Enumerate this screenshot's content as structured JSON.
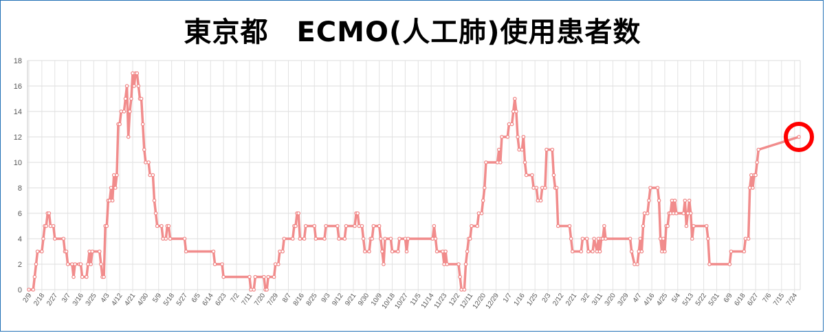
{
  "title": "東京都　ECMO(人工肺)使用患者数",
  "chart_data": {
    "type": "line",
    "title": "東京都　ECMO(人工肺)使用患者数",
    "xlabel": "",
    "ylabel": "",
    "ylim": [
      0,
      18
    ],
    "yticks": [
      "0",
      "2",
      "4",
      "6",
      "8",
      "10",
      "12",
      "14",
      "16",
      "18"
    ],
    "xticks": [
      "2/9",
      "2/18",
      "2/27",
      "3/7",
      "3/16",
      "3/25",
      "4/3",
      "4/12",
      "4/21",
      "4/30",
      "5/9",
      "5/18",
      "5/27",
      "6/5",
      "6/14",
      "6/23",
      "7/2",
      "7/11",
      "7/20",
      "7/29",
      "8/7",
      "8/16",
      "8/25",
      "9/3",
      "9/12",
      "9/21",
      "9/30",
      "10/9",
      "10/18",
      "10/27",
      "11/5",
      "11/14",
      "11/23",
      "12/2",
      "12/11",
      "12/20",
      "12/29",
      "1/7",
      "1/16",
      "1/25",
      "2/3",
      "2/12",
      "2/21",
      "3/2",
      "3/11",
      "3/20",
      "3/29",
      "4/7",
      "4/16",
      "4/25",
      "5/4",
      "5/13",
      "5/22",
      "5/31",
      "6/9",
      "6/18",
      "6/27",
      "7/6",
      "7/15",
      "7/24"
    ],
    "grid": true,
    "line_color": "#f08080",
    "highlight_color": "#ff0000",
    "highlight_point": {
      "x": "7/27",
      "y": 12
    },
    "series": [
      {
        "points": [
          [
            "2/9",
            0
          ],
          [
            "2/12",
            0
          ],
          [
            "2/13",
            1
          ],
          [
            "2/14",
            2
          ],
          [
            "2/15",
            3
          ],
          [
            "2/18",
            3
          ],
          [
            "2/19",
            4
          ],
          [
            "2/20",
            5
          ],
          [
            "2/21",
            5
          ],
          [
            "2/22",
            6
          ],
          [
            "2/23",
            6
          ],
          [
            "2/24",
            5
          ],
          [
            "2/26",
            5
          ],
          [
            "2/27",
            4
          ],
          [
            "3/4",
            4
          ],
          [
            "3/5",
            3
          ],
          [
            "3/6",
            3
          ],
          [
            "3/7",
            2
          ],
          [
            "3/10",
            2
          ],
          [
            "3/11",
            1
          ],
          [
            "3/12",
            2
          ],
          [
            "3/15",
            2
          ],
          [
            "3/16",
            2
          ],
          [
            "3/17",
            1
          ],
          [
            "3/20",
            1
          ],
          [
            "3/21",
            2
          ],
          [
            "3/22",
            3
          ],
          [
            "3/23",
            2
          ],
          [
            "3/24",
            3
          ],
          [
            "3/29",
            3
          ],
          [
            "3/30",
            2
          ],
          [
            "3/31",
            1
          ],
          [
            "4/1",
            1
          ],
          [
            "4/2",
            5
          ],
          [
            "4/3",
            5
          ],
          [
            "4/4",
            7
          ],
          [
            "4/5",
            7
          ],
          [
            "4/6",
            8
          ],
          [
            "4/7",
            7
          ],
          [
            "4/8",
            9
          ],
          [
            "4/9",
            8
          ],
          [
            "4/10",
            9
          ],
          [
            "4/11",
            13
          ],
          [
            "4/12",
            13
          ],
          [
            "4/13",
            14
          ],
          [
            "4/15",
            14
          ],
          [
            "4/16",
            15
          ],
          [
            "4/17",
            16
          ],
          [
            "4/18",
            12
          ],
          [
            "4/19",
            14
          ],
          [
            "4/20",
            15
          ],
          [
            "4/21",
            17
          ],
          [
            "4/22",
            16
          ],
          [
            "4/23",
            17
          ],
          [
            "4/24",
            17
          ],
          [
            "4/25",
            16
          ],
          [
            "4/26",
            15
          ],
          [
            "4/27",
            15
          ],
          [
            "4/28",
            13
          ],
          [
            "4/29",
            11
          ],
          [
            "4/30",
            10
          ],
          [
            "5/2",
            10
          ],
          [
            "5/3",
            9
          ],
          [
            "5/5",
            9
          ],
          [
            "5/6",
            7
          ],
          [
            "5/7",
            6
          ],
          [
            "5/8",
            5
          ],
          [
            "5/11",
            5
          ],
          [
            "5/12",
            4
          ],
          [
            "5/14",
            4
          ],
          [
            "5/15",
            5
          ],
          [
            "5/16",
            5
          ],
          [
            "5/17",
            4
          ],
          [
            "5/27",
            4
          ],
          [
            "5/28",
            3
          ],
          [
            "6/16",
            3
          ],
          [
            "6/17",
            2
          ],
          [
            "6/22",
            2
          ],
          [
            "6/23",
            1
          ],
          [
            "7/11",
            1
          ],
          [
            "7/12",
            0
          ],
          [
            "7/14",
            0
          ],
          [
            "7/15",
            1
          ],
          [
            "7/21",
            1
          ],
          [
            "7/22",
            0
          ],
          [
            "7/23",
            0
          ],
          [
            "7/24",
            1
          ],
          [
            "7/28",
            1
          ],
          [
            "7/29",
            2
          ],
          [
            "7/31",
            2
          ],
          [
            "8/1",
            3
          ],
          [
            "8/3",
            3
          ],
          [
            "8/4",
            4
          ],
          [
            "8/10",
            4
          ],
          [
            "8/11",
            5
          ],
          [
            "8/12",
            5
          ],
          [
            "8/13",
            6
          ],
          [
            "8/14",
            6
          ],
          [
            "8/15",
            4
          ],
          [
            "8/18",
            4
          ],
          [
            "8/19",
            5
          ],
          [
            "8/25",
            5
          ],
          [
            "8/26",
            4
          ],
          [
            "9/1",
            4
          ],
          [
            "9/2",
            5
          ],
          [
            "9/10",
            5
          ],
          [
            "9/11",
            4
          ],
          [
            "9/15",
            4
          ],
          [
            "9/16",
            5
          ],
          [
            "9/22",
            5
          ],
          [
            "9/23",
            6
          ],
          [
            "9/24",
            6
          ],
          [
            "9/25",
            5
          ],
          [
            "9/27",
            5
          ],
          [
            "9/28",
            4
          ],
          [
            "9/29",
            3
          ],
          [
            "10/2",
            3
          ],
          [
            "10/3",
            4
          ],
          [
            "10/4",
            4
          ],
          [
            "10/5",
            5
          ],
          [
            "10/9",
            5
          ],
          [
            "10/10",
            4
          ],
          [
            "10/11",
            3
          ],
          [
            "10/12",
            2
          ],
          [
            "10/13",
            4
          ],
          [
            "10/17",
            4
          ],
          [
            "10/18",
            3
          ],
          [
            "10/22",
            3
          ],
          [
            "10/23",
            4
          ],
          [
            "10/27",
            4
          ],
          [
            "10/28",
            3
          ],
          [
            "10/29",
            4
          ],
          [
            "11/15",
            4
          ],
          [
            "11/16",
            5
          ],
          [
            "11/17",
            4
          ],
          [
            "11/18",
            3
          ],
          [
            "11/22",
            3
          ],
          [
            "11/23",
            2
          ],
          [
            "11/24",
            3
          ],
          [
            "11/25",
            2
          ],
          [
            "12/3",
            2
          ],
          [
            "12/4",
            1
          ],
          [
            "12/5",
            0
          ],
          [
            "12/7",
            0
          ],
          [
            "12/8",
            2
          ],
          [
            "12/9",
            3
          ],
          [
            "12/10",
            4
          ],
          [
            "12/11",
            4
          ],
          [
            "12/12",
            5
          ],
          [
            "12/16",
            5
          ],
          [
            "12/17",
            6
          ],
          [
            "12/19",
            6
          ],
          [
            "12/20",
            7
          ],
          [
            "12/21",
            8
          ],
          [
            "12/22",
            10
          ],
          [
            "12/30",
            10
          ],
          [
            "12/31",
            11
          ],
          [
            "1/1",
            10
          ],
          [
            "1/2",
            12
          ],
          [
            "1/6",
            12
          ],
          [
            "1/7",
            13
          ],
          [
            "1/9",
            13
          ],
          [
            "1/10",
            14
          ],
          [
            "1/11",
            15
          ],
          [
            "1/12",
            14
          ],
          [
            "1/13",
            12
          ],
          [
            "1/14",
            11
          ],
          [
            "1/16",
            11
          ],
          [
            "1/17",
            12
          ],
          [
            "1/18",
            10
          ],
          [
            "1/19",
            9
          ],
          [
            "1/23",
            9
          ],
          [
            "1/24",
            8
          ],
          [
            "1/26",
            8
          ],
          [
            "1/27",
            7
          ],
          [
            "1/29",
            7
          ],
          [
            "1/30",
            8
          ],
          [
            "2/1",
            8
          ],
          [
            "2/2",
            11
          ],
          [
            "2/6",
            11
          ],
          [
            "2/7",
            9
          ],
          [
            "2/8",
            8
          ],
          [
            "2/9",
            8
          ],
          [
            "2/10",
            5
          ],
          [
            "2/18",
            5
          ],
          [
            "2/19",
            4
          ],
          [
            "2/20",
            3
          ],
          [
            "2/26",
            3
          ],
          [
            "2/27",
            4
          ],
          [
            "3/2",
            4
          ],
          [
            "3/3",
            3
          ],
          [
            "3/6",
            3
          ],
          [
            "3/7",
            4
          ],
          [
            "3/9",
            3
          ],
          [
            "3/10",
            4
          ],
          [
            "3/11",
            3
          ],
          [
            "3/12",
            4
          ],
          [
            "3/13",
            4
          ],
          [
            "3/14",
            5
          ],
          [
            "3/15",
            4
          ],
          [
            "4/1",
            4
          ],
          [
            "4/2",
            3
          ],
          [
            "4/4",
            2
          ],
          [
            "4/6",
            2
          ],
          [
            "4/7",
            3
          ],
          [
            "4/8",
            4
          ],
          [
            "4/9",
            3
          ],
          [
            "4/10",
            5
          ],
          [
            "4/11",
            6
          ],
          [
            "4/13",
            6
          ],
          [
            "4/14",
            7
          ],
          [
            "4/15",
            8
          ],
          [
            "4/20",
            8
          ],
          [
            "4/21",
            7
          ],
          [
            "4/22",
            4
          ],
          [
            "4/23",
            3
          ],
          [
            "4/24",
            4
          ],
          [
            "4/25",
            3
          ],
          [
            "4/26",
            5
          ],
          [
            "4/27",
            5
          ],
          [
            "4/28",
            6
          ],
          [
            "4/29",
            6
          ],
          [
            "4/30",
            7
          ],
          [
            "5/1",
            6
          ],
          [
            "5/2",
            7
          ],
          [
            "5/3",
            6
          ],
          [
            "5/8",
            6
          ],
          [
            "5/9",
            7
          ],
          [
            "5/10",
            5
          ],
          [
            "5/11",
            6
          ],
          [
            "5/12",
            7
          ],
          [
            "5/13",
            6
          ],
          [
            "5/14",
            4
          ],
          [
            "5/15",
            5
          ],
          [
            "5/24",
            5
          ],
          [
            "5/25",
            4
          ],
          [
            "5/26",
            2
          ],
          [
            "6/9",
            2
          ],
          [
            "6/10",
            3
          ],
          [
            "6/19",
            3
          ],
          [
            "6/20",
            4
          ],
          [
            "6/22",
            4
          ],
          [
            "6/23",
            8
          ],
          [
            "6/24",
            9
          ],
          [
            "6/25",
            8
          ],
          [
            "6/26",
            9
          ],
          [
            "6/27",
            9
          ],
          [
            "6/28",
            10
          ],
          [
            "6/29",
            11
          ],
          [
            "7/27",
            12
          ]
        ]
      }
    ]
  }
}
